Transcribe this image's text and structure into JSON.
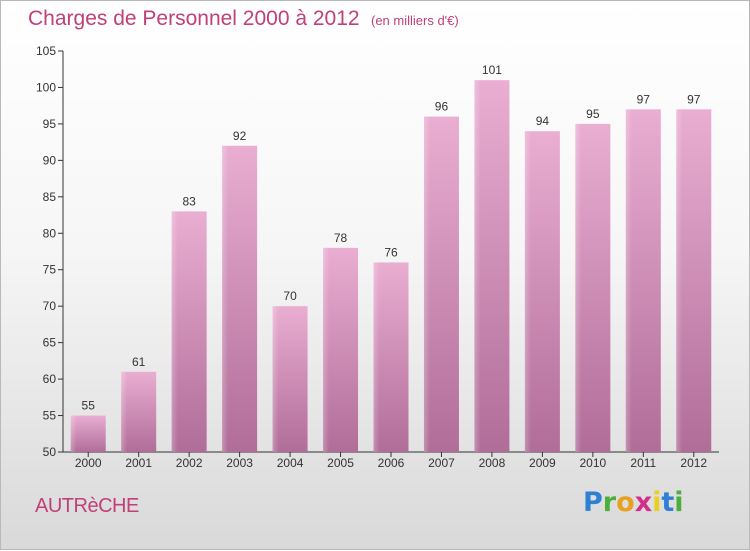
{
  "header": {
    "title": "Charges de Personnel 2000 à 2012",
    "subtitle": "(en milliers d'€)"
  },
  "footer": {
    "commune": "AUTRèCHE",
    "logo": {
      "letters": [
        "P",
        "r",
        "o",
        "x",
        "i",
        "t",
        "i"
      ],
      "colors": [
        "#2f7fd4",
        "#4caf3a",
        "#e8a020",
        "#d0308a",
        "#e8d020",
        "#2f7fd4",
        "#4caf3a"
      ]
    }
  },
  "chart_data": {
    "type": "bar",
    "categories": [
      "2000",
      "2001",
      "2002",
      "2003",
      "2004",
      "2005",
      "2006",
      "2007",
      "2008",
      "2009",
      "2010",
      "2011",
      "2012"
    ],
    "values": [
      55,
      61,
      83,
      92,
      70,
      78,
      76,
      96,
      101,
      94,
      95,
      97,
      97
    ],
    "data_labels": [
      "55",
      "61",
      "83",
      "92",
      "70",
      "78",
      "76",
      "96",
      "101",
      "94",
      "95",
      "97",
      "97"
    ],
    "yticks": [
      "50",
      "55",
      "60",
      "65",
      "70",
      "75",
      "80",
      "85",
      "90",
      "95",
      "100",
      "105"
    ],
    "ylim": [
      50,
      105
    ],
    "grid": false,
    "bar_color": "#d98fba",
    "label_color": "#333333"
  }
}
